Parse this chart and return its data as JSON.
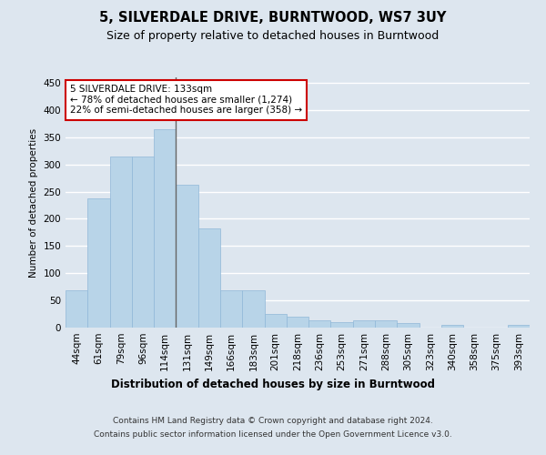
{
  "title": "5, SILVERDALE DRIVE, BURNTWOOD, WS7 3UY",
  "subtitle": "Size of property relative to detached houses in Burntwood",
  "xlabel": "Distribution of detached houses by size in Burntwood",
  "ylabel": "Number of detached properties",
  "categories": [
    "44sqm",
    "61sqm",
    "79sqm",
    "96sqm",
    "114sqm",
    "131sqm",
    "149sqm",
    "166sqm",
    "183sqm",
    "201sqm",
    "218sqm",
    "236sqm",
    "253sqm",
    "271sqm",
    "288sqm",
    "305sqm",
    "323sqm",
    "340sqm",
    "358sqm",
    "375sqm",
    "393sqm"
  ],
  "values": [
    68,
    237,
    315,
    315,
    365,
    262,
    183,
    68,
    68,
    25,
    20,
    13,
    10,
    13,
    13,
    8,
    0,
    5,
    0,
    0,
    5
  ],
  "bar_color": "#b8d4e8",
  "bar_edge_color": "#90b8d8",
  "marker_index": 5,
  "marker_color": "#666666",
  "annotation_line1": "5 SILVERDALE DRIVE: 133sqm",
  "annotation_line2": "← 78% of detached houses are smaller (1,274)",
  "annotation_line3": "22% of semi-detached houses are larger (358) →",
  "annotation_box_facecolor": "#ffffff",
  "annotation_box_edgecolor": "#cc0000",
  "ylim": [
    0,
    460
  ],
  "yticks": [
    0,
    50,
    100,
    150,
    200,
    250,
    300,
    350,
    400,
    450
  ],
  "background_color": "#dde6ef",
  "plot_bg_color": "#dde6ef",
  "grid_color": "#ffffff",
  "footer_line1": "Contains HM Land Registry data © Crown copyright and database right 2024.",
  "footer_line2": "Contains public sector information licensed under the Open Government Licence v3.0."
}
